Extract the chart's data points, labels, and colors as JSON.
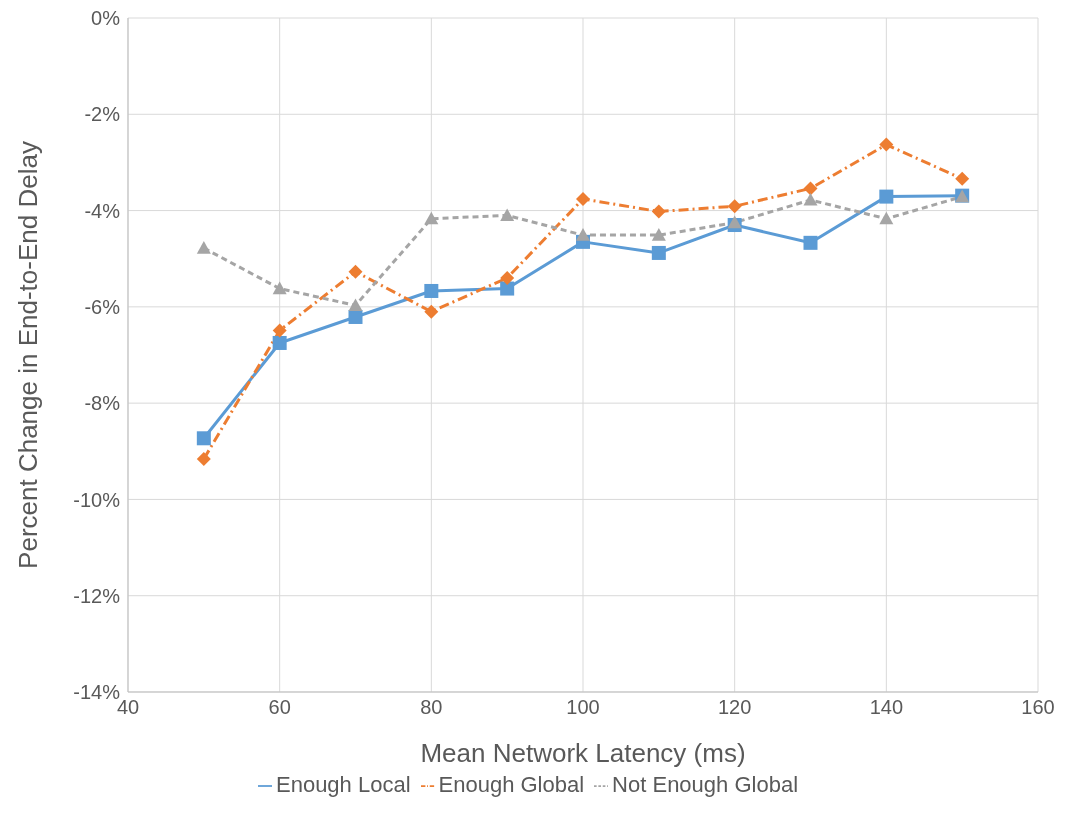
{
  "chart_data": {
    "type": "line",
    "xlabel": "Mean Network Latency (ms)",
    "ylabel": "Percent Change in End-to-End Delay",
    "x": [
      50,
      60,
      70,
      80,
      90,
      100,
      110,
      120,
      130,
      140,
      150
    ],
    "series": [
      {
        "name": "Enough Local",
        "color": "#5b9bd5",
        "marker": "square",
        "line_style": "solid",
        "values": [
          -8.73,
          -6.75,
          -6.21,
          -5.67,
          -5.62,
          -4.65,
          -4.88,
          -4.3,
          -4.67,
          -3.71,
          -3.69
        ]
      },
      {
        "name": "Enough Global",
        "color": "#ed7d31",
        "marker": "diamond",
        "line_style": "dashdot",
        "values": [
          -9.16,
          -6.49,
          -5.27,
          -6.1,
          -5.4,
          -3.76,
          -4.02,
          -3.91,
          -3.54,
          -2.63,
          -3.34
        ]
      },
      {
        "name": "Not Enough Global",
        "color": "#a5a5a5",
        "marker": "triangle",
        "line_style": "dashed",
        "values": [
          -4.78,
          -5.62,
          -5.97,
          -4.17,
          -4.1,
          -4.51,
          -4.51,
          -4.25,
          -3.78,
          -4.17,
          -3.71
        ]
      }
    ],
    "xlim": [
      40,
      160
    ],
    "xticks": [
      40,
      60,
      80,
      100,
      120,
      140,
      160
    ],
    "ylim": [
      -14,
      0
    ],
    "yticks": [
      {
        "value": -14,
        "label": "-14%"
      },
      {
        "value": -12,
        "label": "-12%"
      },
      {
        "value": -10,
        "label": "-10%"
      },
      {
        "value": -8,
        "label": "-8%"
      },
      {
        "value": -6,
        "label": "-6%"
      },
      {
        "value": -4,
        "label": "-4%"
      },
      {
        "value": -2,
        "label": "-2%"
      },
      {
        "value": 0,
        "label": "0%"
      }
    ],
    "grid": true,
    "legend": "bottom"
  }
}
